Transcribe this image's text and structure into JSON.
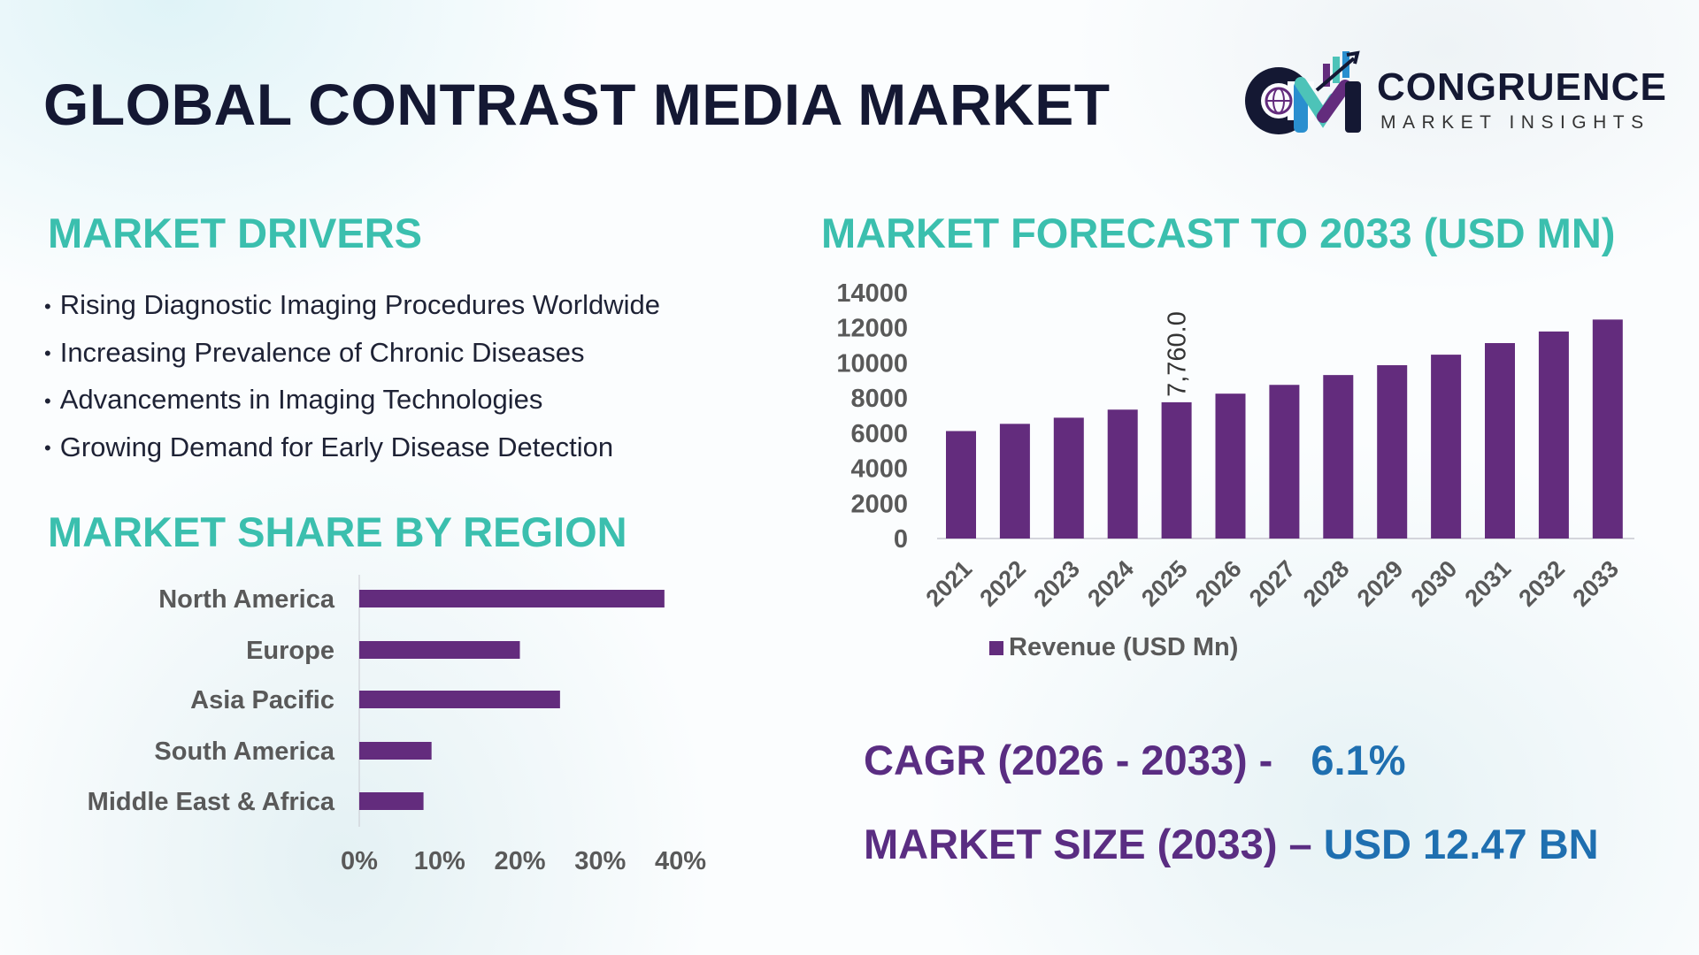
{
  "header": {
    "title": "GLOBAL CONTRAST MEDIA MARKET",
    "logo": {
      "name": "CONGRUENCE",
      "tagline": "MARKET INSIGHTS",
      "icon": "cm-chart-globe-logo"
    }
  },
  "drivers": {
    "heading": "MARKET DRIVERS",
    "bullet": "•",
    "items": [
      "Rising Diagnostic Imaging Procedures Worldwide",
      "Increasing Prevalence of Chronic Diseases",
      "Advancements in Imaging Technologies",
      "Growing Demand for Early Disease Detection"
    ]
  },
  "region_heading": "MARKET SHARE BY REGION",
  "forecast_heading": "MARKET FORECAST TO 2033 (USD MN)",
  "stats": {
    "cagr_label": "CAGR (2026 - 2033) -",
    "cagr_value": "6.1%",
    "size_label": "MARKET SIZE (2033) –",
    "size_value": "USD 12.47 BN"
  },
  "colors": {
    "bar": "#632c7d",
    "heading": "#3bbfae",
    "title": "#141833",
    "stat_label": "#5a2d82",
    "stat_value": "#1f6fb0",
    "tick": "#595959"
  },
  "chart_data": [
    {
      "type": "bar",
      "orientation": "horizontal",
      "categories": [
        "North America",
        "Europe",
        "Asia Pacific",
        "South America",
        "Middle East & Africa"
      ],
      "values": [
        38,
        20,
        25,
        9,
        8
      ],
      "xlim": [
        0,
        40
      ],
      "x_ticks": [
        "0%",
        "10%",
        "20%",
        "30%",
        "40%"
      ],
      "grid": false
    },
    {
      "type": "bar",
      "categories": [
        "2021",
        "2022",
        "2023",
        "2024",
        "2025",
        "2026",
        "2027",
        "2028",
        "2029",
        "2030",
        "2031",
        "2032",
        "2033"
      ],
      "series": [
        {
          "name": "Revenue (USD Mn)",
          "values": [
            6120,
            6530,
            6880,
            7340,
            7760,
            8250,
            8750,
            9310,
            9870,
            10470,
            11130,
            11790,
            12470
          ]
        }
      ],
      "ylim": [
        0,
        14000
      ],
      "y_ticks": [
        "0",
        "2000",
        "4000",
        "6000",
        "8000",
        "10000",
        "12000",
        "14000"
      ],
      "annotations": [
        {
          "category": "2025",
          "text": "7,760.0"
        }
      ],
      "legend": "bottom",
      "grid": false
    }
  ]
}
